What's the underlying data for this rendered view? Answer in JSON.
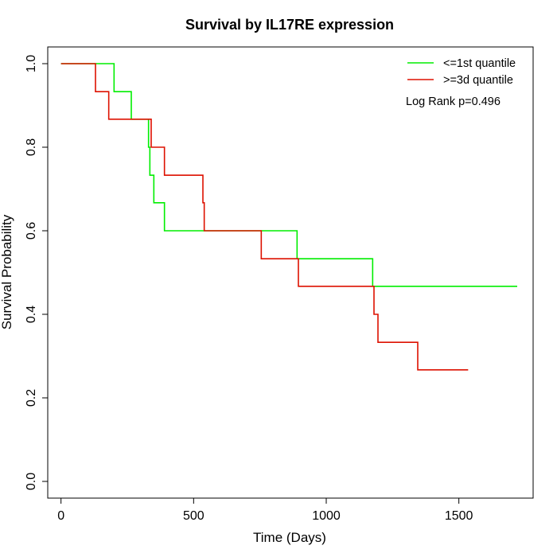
{
  "chart_data": {
    "type": "line",
    "title": "Survival by IL17RE expression",
    "xlabel": "Time (Days)",
    "ylabel": "Survival Probability",
    "xlim": [
      -50,
      1780
    ],
    "ylim": [
      -0.04,
      1.04
    ],
    "x_ticks": [
      0,
      500,
      1000,
      1500
    ],
    "x_tick_labels": [
      "0",
      "500",
      "1000",
      "1500"
    ],
    "y_ticks": [
      0.0,
      0.2,
      0.4,
      0.6,
      0.8,
      1.0
    ],
    "y_tick_labels": [
      "0.0",
      "0.2",
      "0.4",
      "0.6",
      "0.8",
      "1.0"
    ],
    "grid": false,
    "legend_position": "top-right",
    "annotation": "Log Rank p=0.496",
    "series": [
      {
        "name": "<=1st quantile",
        "color": "#00ee00",
        "steps": [
          [
            0,
            1.0
          ],
          [
            200,
            0.933
          ],
          [
            265,
            0.867
          ],
          [
            330,
            0.8
          ],
          [
            335,
            0.733
          ],
          [
            350,
            0.667
          ],
          [
            390,
            0.6
          ],
          [
            890,
            0.533
          ],
          [
            1175,
            0.467
          ],
          [
            1720,
            0.467
          ]
        ]
      },
      {
        "name": ">=3d quantile",
        "color": "#dd1100",
        "steps": [
          [
            0,
            1.0
          ],
          [
            130,
            0.933
          ],
          [
            180,
            0.867
          ],
          [
            340,
            0.8
          ],
          [
            390,
            0.733
          ],
          [
            535,
            0.667
          ],
          [
            540,
            0.6
          ],
          [
            755,
            0.533
          ],
          [
            895,
            0.467
          ],
          [
            1180,
            0.4
          ],
          [
            1195,
            0.333
          ],
          [
            1345,
            0.267
          ],
          [
            1535,
            0.267
          ]
        ]
      }
    ]
  }
}
